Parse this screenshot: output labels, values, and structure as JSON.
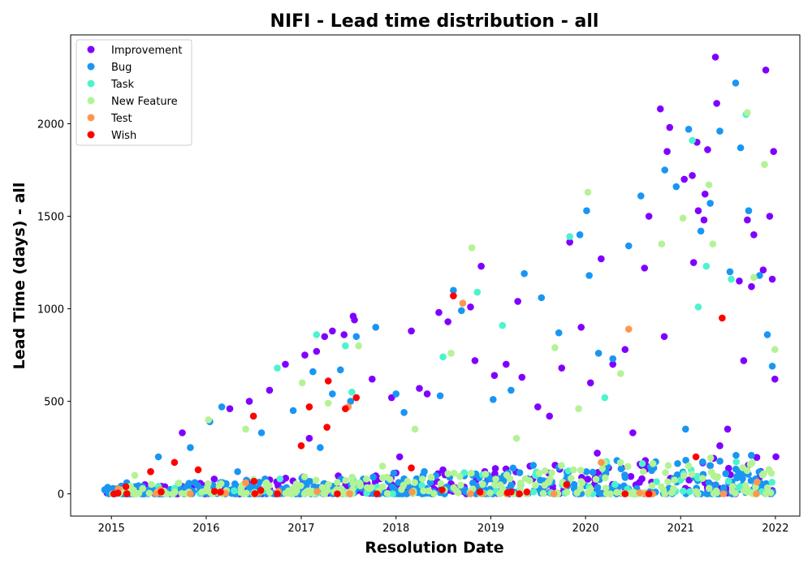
{
  "chart_data": {
    "type": "scatter",
    "title": "NIFI - Lead time distribution - all",
    "xlabel": "Resolution Date",
    "ylabel": "Lead Time (days) - all",
    "x_ticks": [
      "2015",
      "2016",
      "2017",
      "2018",
      "2019",
      "2020",
      "2021",
      "2022"
    ],
    "y_ticks": [
      0,
      500,
      1000,
      1500,
      2000
    ],
    "xlim": [
      "2014-07-28",
      "2022-04-05"
    ],
    "ylim": [
      -120,
      2480
    ],
    "grid": false,
    "legend_position": "top-left",
    "series": [
      {
        "name": "Improvement",
        "color": "#8000ff",
        "points": [
          [
            "2015-06-01",
            120
          ],
          [
            "2015-10-01",
            330
          ],
          [
            "2016-04-01",
            460
          ],
          [
            "2016-06-15",
            500
          ],
          [
            "2016-09-01",
            560
          ],
          [
            "2016-11-01",
            700
          ],
          [
            "2017-01-15",
            750
          ],
          [
            "2017-03-01",
            770
          ],
          [
            "2017-04-01",
            850
          ],
          [
            "2017-05-01",
            880
          ],
          [
            "2017-06-15",
            860
          ],
          [
            "2017-07-20",
            960
          ],
          [
            "2017-07-25",
            940
          ],
          [
            "2017-10-01",
            620
          ],
          [
            "2017-12-15",
            520
          ],
          [
            "2018-03-01",
            880
          ],
          [
            "2018-04-01",
            570
          ],
          [
            "2018-05-01",
            540
          ],
          [
            "2018-06-15",
            980
          ],
          [
            "2018-07-20",
            930
          ],
          [
            "2018-10-15",
            1010
          ],
          [
            "2018-11-01",
            720
          ],
          [
            "2018-11-25",
            1230
          ],
          [
            "2019-01-15",
            640
          ],
          [
            "2019-03-01",
            700
          ],
          [
            "2019-04-15",
            1040
          ],
          [
            "2019-05-01",
            630
          ],
          [
            "2019-07-01",
            470
          ],
          [
            "2019-08-15",
            420
          ],
          [
            "2019-10-01",
            680
          ],
          [
            "2019-11-01",
            1360
          ],
          [
            "2019-12-15",
            900
          ],
          [
            "2020-01-20",
            600
          ],
          [
            "2020-03-01",
            1270
          ],
          [
            "2020-04-15",
            700
          ],
          [
            "2020-06-01",
            780
          ],
          [
            "2020-07-01",
            330
          ],
          [
            "2020-08-15",
            1220
          ],
          [
            "2020-09-01",
            1500
          ],
          [
            "2020-10-15",
            2080
          ],
          [
            "2020-10-30",
            850
          ],
          [
            "2020-11-20",
            1980
          ],
          [
            "2020-11-10",
            1850
          ],
          [
            "2021-01-15",
            1700
          ],
          [
            "2021-02-15",
            1720
          ],
          [
            "2021-02-20",
            1250
          ],
          [
            "2021-03-05",
            1900
          ],
          [
            "2021-03-10",
            1530
          ],
          [
            "2021-04-01",
            1480
          ],
          [
            "2021-04-05",
            1620
          ],
          [
            "2021-04-15",
            1860
          ],
          [
            "2021-05-15",
            2360
          ],
          [
            "2021-05-20",
            2110
          ],
          [
            "2021-07-01",
            350
          ],
          [
            "2021-08-15",
            1150
          ],
          [
            "2021-09-01",
            720
          ],
          [
            "2021-09-15",
            1480
          ],
          [
            "2021-10-01",
            1120
          ],
          [
            "2021-10-10",
            1400
          ],
          [
            "2021-11-15",
            1210
          ],
          [
            "2021-11-25",
            2290
          ],
          [
            "2021-12-10",
            1500
          ],
          [
            "2021-12-20",
            1160
          ],
          [
            "2021-12-25",
            1850
          ],
          [
            "2021-12-30",
            620
          ],
          [
            "2016-02-01",
            80
          ],
          [
            "2017-02-01",
            300
          ],
          [
            "2018-01-15",
            200
          ],
          [
            "2019-06-01",
            150
          ],
          [
            "2020-02-15",
            220
          ],
          [
            "2021-06-01",
            260
          ],
          [
            "2021-11-01",
            90
          ]
        ]
      },
      {
        "name": "Bug",
        "color": "#1996f3",
        "points": [
          [
            "2015-03-01",
            60
          ],
          [
            "2015-07-01",
            200
          ],
          [
            "2015-11-01",
            250
          ],
          [
            "2016-01-15",
            390
          ],
          [
            "2016-03-01",
            470
          ],
          [
            "2016-08-01",
            330
          ],
          [
            "2016-12-01",
            450
          ],
          [
            "2017-02-15",
            660
          ],
          [
            "2017-05-01",
            540
          ],
          [
            "2017-06-01",
            670
          ],
          [
            "2017-07-10",
            500
          ],
          [
            "2017-08-01",
            850
          ],
          [
            "2017-10-15",
            900
          ],
          [
            "2018-01-01",
            540
          ],
          [
            "2018-02-01",
            440
          ],
          [
            "2018-06-20",
            530
          ],
          [
            "2018-08-10",
            1100
          ],
          [
            "2018-09-10",
            990
          ],
          [
            "2019-01-10",
            510
          ],
          [
            "2019-03-20",
            560
          ],
          [
            "2019-05-10",
            1190
          ],
          [
            "2019-07-15",
            1060
          ],
          [
            "2019-09-20",
            870
          ],
          [
            "2019-12-10",
            1400
          ],
          [
            "2020-01-05",
            1530
          ],
          [
            "2020-01-15",
            1180
          ],
          [
            "2020-02-20",
            760
          ],
          [
            "2020-04-15",
            730
          ],
          [
            "2020-06-15",
            1340
          ],
          [
            "2020-08-01",
            1610
          ],
          [
            "2020-11-01",
            1750
          ],
          [
            "2020-12-15",
            1660
          ],
          [
            "2021-02-01",
            1970
          ],
          [
            "2021-03-20",
            1420
          ],
          [
            "2021-04-25",
            1570
          ],
          [
            "2021-06-01",
            1960
          ],
          [
            "2021-07-10",
            1200
          ],
          [
            "2021-08-01",
            2220
          ],
          [
            "2021-08-20",
            1870
          ],
          [
            "2021-09-20",
            1530
          ],
          [
            "2021-11-01",
            1180
          ],
          [
            "2021-12-01",
            860
          ],
          [
            "2021-12-20",
            690
          ],
          [
            "2015-05-01",
            40
          ],
          [
            "2016-05-01",
            120
          ],
          [
            "2017-03-15",
            250
          ],
          [
            "2018-04-15",
            100
          ],
          [
            "2019-08-01",
            60
          ],
          [
            "2020-05-01",
            180
          ],
          [
            "2021-01-20",
            350
          ],
          [
            "2021-10-15",
            40
          ]
        ]
      },
      {
        "name": "Task",
        "color": "#4df3ce",
        "points": [
          [
            "2015-09-01",
            30
          ],
          [
            "2016-10-01",
            680
          ],
          [
            "2017-03-01",
            860
          ],
          [
            "2017-06-20",
            800
          ],
          [
            "2017-07-15",
            550
          ],
          [
            "2018-07-01",
            740
          ],
          [
            "2018-11-10",
            1090
          ],
          [
            "2019-02-15",
            910
          ],
          [
            "2019-11-01",
            1390
          ],
          [
            "2020-03-15",
            520
          ],
          [
            "2021-02-15",
            1910
          ],
          [
            "2021-03-10",
            1010
          ],
          [
            "2021-04-10",
            1230
          ],
          [
            "2021-09-10",
            2050
          ],
          [
            "2021-07-15",
            1160
          ],
          [
            "2016-02-15",
            20
          ],
          [
            "2018-03-10",
            15
          ],
          [
            "2019-06-15",
            10
          ],
          [
            "2020-06-10",
            25
          ],
          [
            "2021-11-10",
            12
          ]
        ]
      },
      {
        "name": "New Feature",
        "color": "#b3f396",
        "points": [
          [
            "2016-01-10",
            400
          ],
          [
            "2016-06-01",
            350
          ],
          [
            "2017-01-05",
            600
          ],
          [
            "2017-04-15",
            490
          ],
          [
            "2017-08-10",
            800
          ],
          [
            "2018-03-15",
            350
          ],
          [
            "2018-08-01",
            760
          ],
          [
            "2018-10-20",
            1330
          ],
          [
            "2019-04-10",
            300
          ],
          [
            "2019-09-05",
            790
          ],
          [
            "2019-12-05",
            460
          ],
          [
            "2020-01-10",
            1630
          ],
          [
            "2020-05-15",
            650
          ],
          [
            "2020-10-20",
            1350
          ],
          [
            "2021-01-10",
            1490
          ],
          [
            "2021-04-20",
            1670
          ],
          [
            "2021-05-05",
            1350
          ],
          [
            "2021-09-15",
            2060
          ],
          [
            "2021-10-10",
            1170
          ],
          [
            "2021-11-20",
            1780
          ],
          [
            "2021-12-30",
            780
          ],
          [
            "2015-04-01",
            100
          ],
          [
            "2016-08-20",
            60
          ],
          [
            "2017-11-10",
            150
          ],
          [
            "2019-01-20",
            80
          ],
          [
            "2020-08-10",
            120
          ],
          [
            "2021-07-20",
            40
          ]
        ]
      },
      {
        "name": "Test",
        "color": "#ff9650",
        "points": [
          [
            "2016-06-01",
            60
          ],
          [
            "2017-07-01",
            470
          ],
          [
            "2018-09-15",
            1030
          ],
          [
            "2018-10-15",
            0
          ],
          [
            "2019-09-01",
            0
          ],
          [
            "2020-03-01",
            170
          ],
          [
            "2020-06-15",
            890
          ],
          [
            "2020-09-15",
            0
          ],
          [
            "2021-06-15",
            0
          ],
          [
            "2021-10-20",
            0
          ],
          [
            "2015-11-01",
            0
          ]
        ]
      },
      {
        "name": "Wish",
        "color": "#ff0000",
        "points": [
          [
            "2015-01-10",
            0
          ],
          [
            "2015-06-01",
            120
          ],
          [
            "2015-09-01",
            170
          ],
          [
            "2015-12-01",
            130
          ],
          [
            "2016-07-01",
            420
          ],
          [
            "2016-10-01",
            0
          ],
          [
            "2017-01-01",
            260
          ],
          [
            "2017-02-01",
            470
          ],
          [
            "2017-04-15",
            610
          ],
          [
            "2017-04-10",
            360
          ],
          [
            "2017-05-20",
            0
          ],
          [
            "2017-06-20",
            460
          ],
          [
            "2017-08-01",
            520
          ],
          [
            "2017-10-20",
            0
          ],
          [
            "2018-03-01",
            140
          ],
          [
            "2018-08-10",
            1070
          ],
          [
            "2018-11-20",
            10
          ],
          [
            "2019-03-20",
            10
          ],
          [
            "2019-05-20",
            10
          ],
          [
            "2019-10-20",
            50
          ],
          [
            "2020-06-01",
            0
          ],
          [
            "2020-09-01",
            0
          ],
          [
            "2021-03-01",
            200
          ],
          [
            "2021-06-10",
            950
          ]
        ]
      }
    ]
  }
}
